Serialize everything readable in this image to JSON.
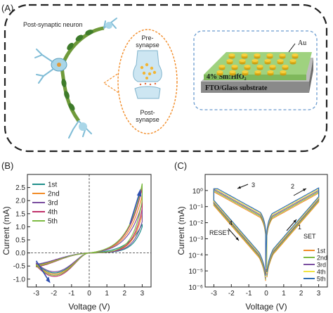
{
  "panel_a": {
    "label": "(A)",
    "neuron_label": "Post-synaptic neuron",
    "pre_synapse_l1": "Pre-",
    "pre_synapse_l2": "synapse",
    "post_synapse_l1": "Post-",
    "post_synapse_l2": "synapse",
    "electrode_label": "Au",
    "film_label": "4% Sm:HfO₂",
    "substrate_label": "FTO/Glass  substrate"
  },
  "colors": {
    "green": "#2e8b57",
    "orange": "#f28c28",
    "purple": "#7b4fa0",
    "teal": "#1f8f8a",
    "olive": "#7dbb42",
    "blue": "#2f6db3",
    "yellow": "#f0e442"
  },
  "chart_data": [
    {
      "panel": "(B)",
      "type": "line",
      "xlabel": "Voltage (V)",
      "ylabel": "Current (mA)",
      "xlim": [
        -3.5,
        3.5
      ],
      "ylim": [
        -1.3,
        3.0
      ],
      "xticks": [
        -3,
        -2,
        -1,
        0,
        1,
        2,
        3
      ],
      "yticks": [
        -1.0,
        -0.5,
        0.0,
        0.5,
        1.0,
        1.5,
        2.0,
        2.5
      ],
      "legend": "top-left",
      "series": [
        {
          "name": "1st",
          "color": "#1f8f8a",
          "hrs_max": 1.0,
          "lrs_max": 1.1,
          "neg_min": -0.85
        },
        {
          "name": "2nd",
          "color": "#f28c28",
          "hrs_max": 1.5,
          "lrs_max": 2.2,
          "neg_min": -0.9
        },
        {
          "name": "3rd",
          "color": "#7b4fa0",
          "hrs_max": 1.2,
          "lrs_max": 1.9,
          "neg_min": -0.8
        },
        {
          "name": "4th",
          "color": "#c0306a",
          "hrs_max": 1.7,
          "lrs_max": 2.5,
          "neg_min": -1.0
        },
        {
          "name": "5th",
          "color": "#7dbb42",
          "hrs_max": 2.0,
          "lrs_max": 2.65,
          "neg_min": -0.95
        }
      ]
    },
    {
      "panel": "(C)",
      "type": "line",
      "yscale": "log",
      "xlabel": "Voltage (V)",
      "ylabel": "Current (mA)",
      "xlim": [
        -3.5,
        3.5
      ],
      "ylim": [
        1e-06,
        10
      ],
      "xticks": [
        -3,
        -2,
        -1,
        0,
        1,
        2,
        3
      ],
      "ytick_labels": [
        "10⁰",
        "10⁻¹",
        "10⁻²",
        "10⁻³",
        "10⁻⁴",
        "10⁻⁵",
        "10⁻⁶"
      ],
      "legend": "bottom-right",
      "annotations": [
        "1",
        "2",
        "3",
        "4",
        "SET",
        "RESET"
      ],
      "series": [
        {
          "name": "1st",
          "color": "#f28c28"
        },
        {
          "name": "2nd",
          "color": "#7dbb42"
        },
        {
          "name": "3rd",
          "color": "#7b4fa0"
        },
        {
          "name": "4th",
          "color": "#f0e442"
        },
        {
          "name": "5th",
          "color": "#2f6db3"
        }
      ]
    }
  ]
}
